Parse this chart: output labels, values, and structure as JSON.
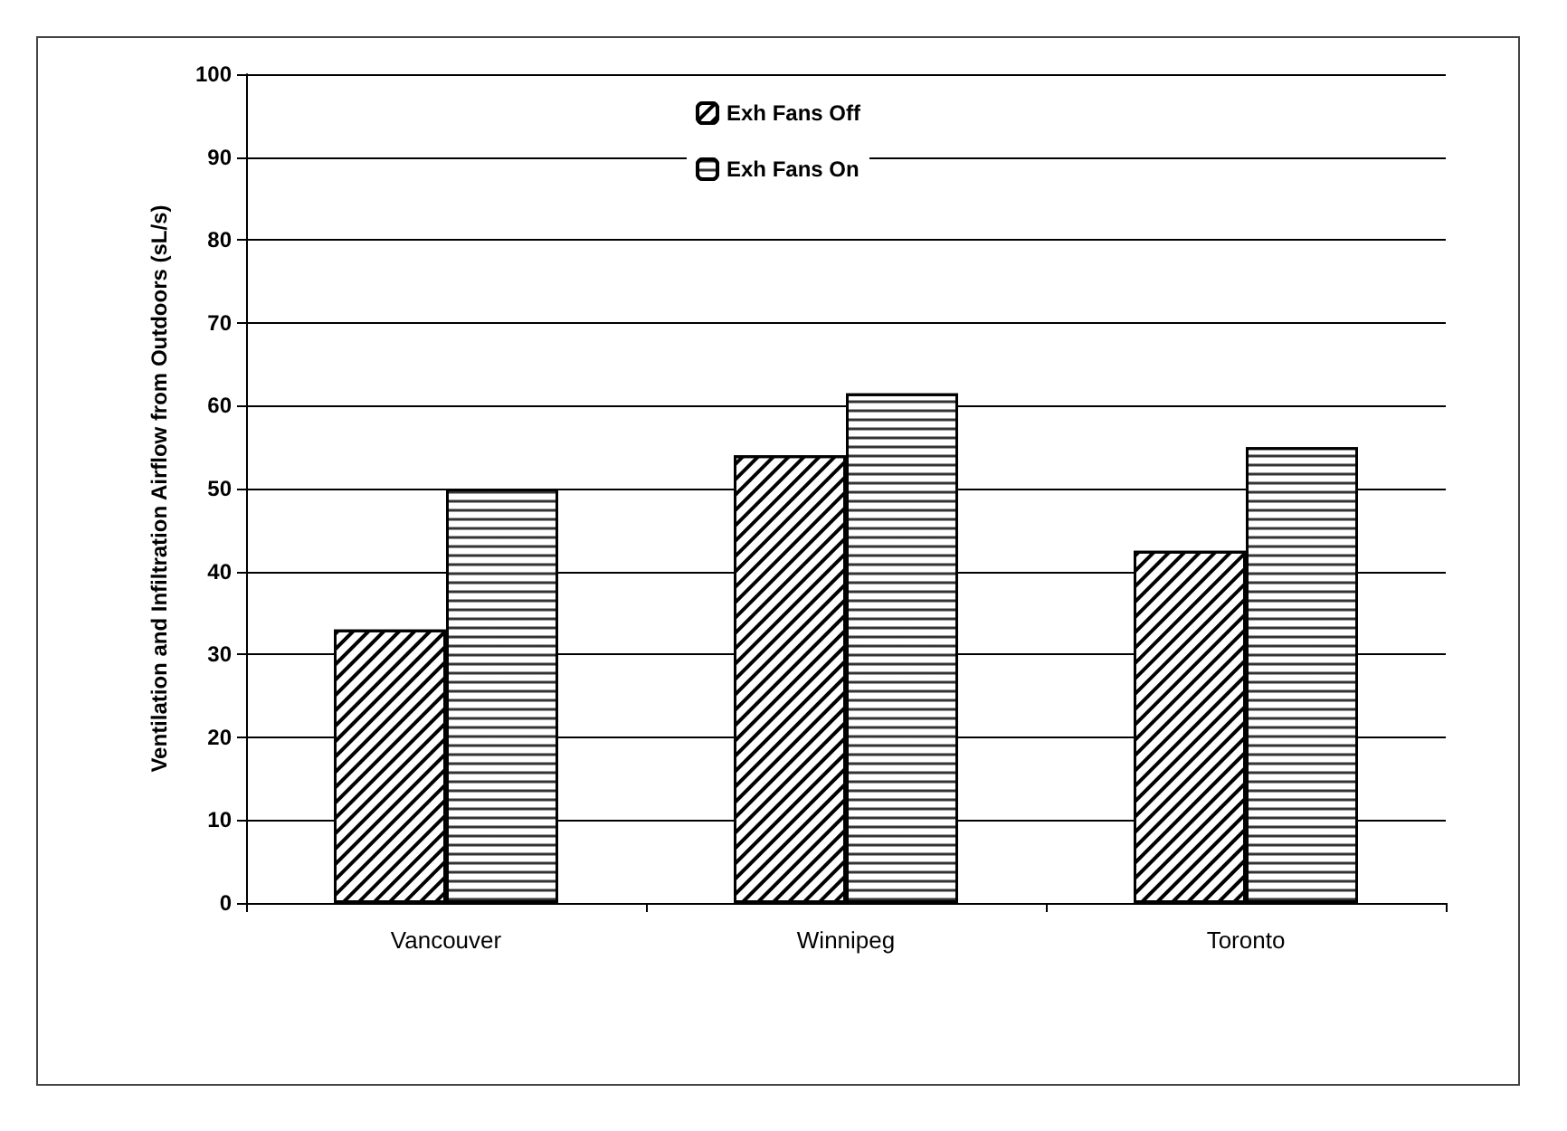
{
  "chart_data": {
    "type": "bar",
    "ylabel": "Ventilation and Infiltration Airflow from Outdoors (sL/s)",
    "categories": [
      "Vancouver",
      "Winnipeg",
      "Toronto"
    ],
    "series": [
      {
        "name": "Exh Fans Off",
        "color": "#ffffff",
        "values": [
          33,
          54,
          42.5
        ]
      },
      {
        "name": "Exh Fans On",
        "color": "#ffffff",
        "values": [
          50,
          61.5,
          55
        ]
      }
    ],
    "ylim": [
      0,
      100
    ],
    "yticks": [
      0,
      10,
      20,
      30,
      40,
      50,
      60,
      70,
      80,
      90,
      100
    ],
    "grid": "y",
    "legend": "top"
  }
}
